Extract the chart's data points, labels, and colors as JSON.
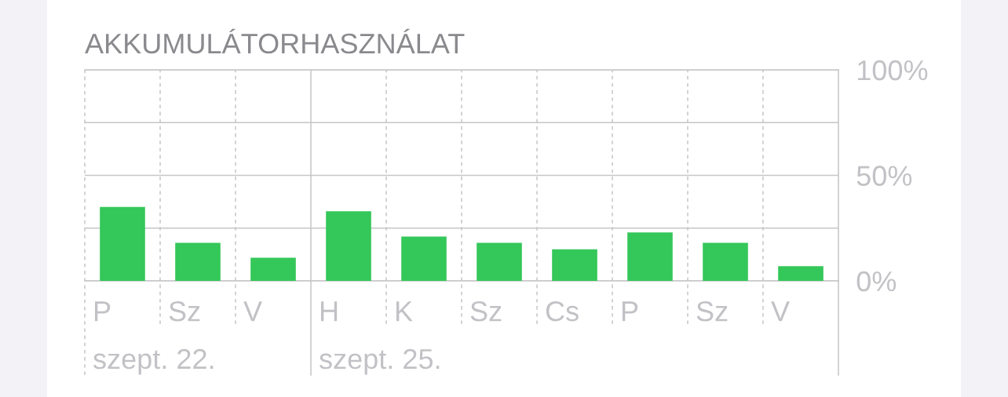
{
  "chart_data": {
    "type": "bar",
    "title": "AKKUMULÁTORHASZNÁLAT",
    "categories": [
      "P",
      "Sz",
      "V",
      "H",
      "K",
      "Sz",
      "Cs",
      "P",
      "Sz",
      "V"
    ],
    "values": [
      35,
      18,
      11,
      33,
      21,
      18,
      15,
      23,
      18,
      7
    ],
    "color": "#34c759",
    "ylim": [
      0,
      100
    ],
    "yticks": [
      {
        "value": 0,
        "label": "0%"
      },
      {
        "value": 25,
        "label": null
      },
      {
        "value": 50,
        "label": "50%"
      },
      {
        "value": 75,
        "label": null
      },
      {
        "value": 100,
        "label": "100%"
      }
    ],
    "grid": true,
    "ref_lines": [
      {
        "axis": "x",
        "value": "P",
        "label": "szept. 22.",
        "line_style": "dashed"
      },
      {
        "axis": "x",
        "value": "H",
        "label": "szept. 25.",
        "line_style": "solid"
      }
    ]
  }
}
